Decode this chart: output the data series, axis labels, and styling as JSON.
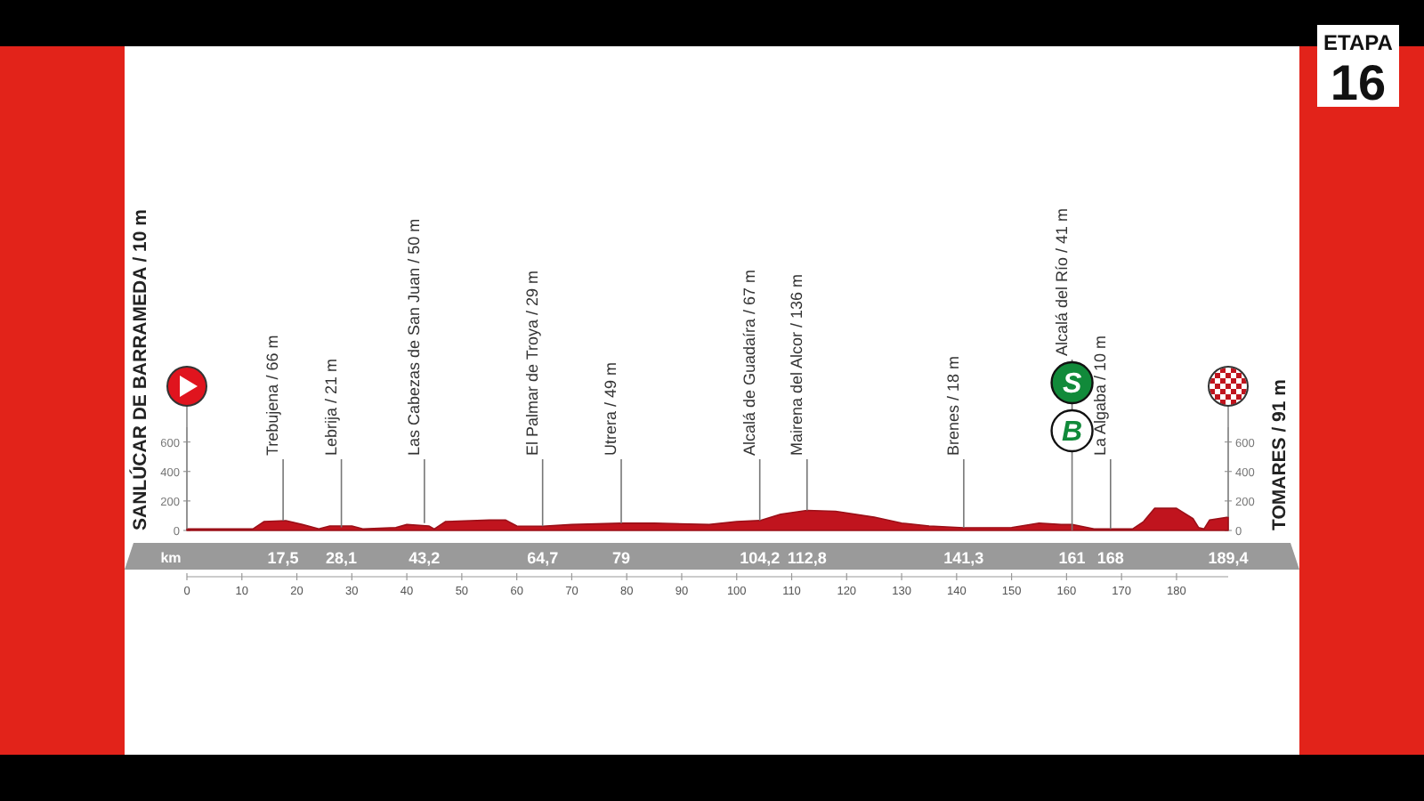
{
  "chart_data": {
    "type": "area",
    "title": "ETAPA",
    "subtitle": "16",
    "x2label": "km",
    "x": [
      0,
      12,
      14,
      18,
      21,
      24,
      26,
      30,
      32,
      38,
      40,
      44,
      45,
      47,
      55,
      58,
      60,
      64.7,
      70,
      79,
      85,
      95,
      100,
      104.2,
      108,
      112.8,
      118,
      125,
      130,
      135,
      141.3,
      150,
      155,
      159,
      161,
      165,
      168,
      172,
      174,
      176,
      180,
      183,
      184,
      185,
      186,
      189.4
    ],
    "series": [
      {
        "color": "#c0141e",
        "values": [
          10,
          10,
          60,
          66,
          40,
          10,
          30,
          30,
          10,
          20,
          40,
          30,
          10,
          60,
          70,
          70,
          30,
          29,
          40,
          49,
          50,
          40,
          60,
          67,
          110,
          136,
          130,
          90,
          50,
          30,
          18,
          20,
          50,
          40,
          41,
          10,
          10,
          10,
          60,
          150,
          150,
          80,
          20,
          10,
          70,
          91
        ]
      }
    ],
    "xlim": [
      0,
      189.4
    ],
    "xticks": [
      0,
      10,
      20,
      30,
      40,
      50,
      60,
      70,
      80,
      90,
      100,
      110,
      120,
      130,
      140,
      150,
      160,
      170,
      180
    ],
    "x2lim": [
      0,
      189.4
    ],
    "x2ticks": [
      {
        "value": 17.5,
        "label": "17,5"
      },
      {
        "value": 28.1,
        "label": "28,1"
      },
      {
        "value": 43.2,
        "label": "43,2"
      },
      {
        "value": 64.7,
        "label": "64,7"
      },
      79,
      {
        "value": 104.2,
        "label": "104,2"
      },
      {
        "value": 112.8,
        "label": "112,8"
      },
      {
        "value": 141.3,
        "label": "141,3"
      },
      161,
      168,
      {
        "value": 189.4,
        "label": "189,4"
      }
    ],
    "ylim": [
      0,
      700
    ],
    "yticks": [
      0,
      200,
      400,
      600
    ],
    "y2lim": [
      0,
      700
    ],
    "y2ticks": [
      0,
      200,
      400,
      600
    ],
    "annotations": [
      {
        "text": "SANLÚCAR DE BARRAMEDA / 10 m",
        "x": 0,
        "y": 10
      },
      {
        "text": "Trebujena / 66 m",
        "x": 17.5,
        "y": 66
      },
      {
        "text": "Lebrija / 21 m",
        "x": 28.1,
        "y": 21
      },
      {
        "text": "Las Cabezas de San Juan / 50 m",
        "x": 43.2,
        "y": 50
      },
      {
        "text": "El Palmar de Troya / 29 m",
        "x": 64.7,
        "y": 29
      },
      {
        "text": "Utrera / 49 m",
        "x": 79,
        "y": 49
      },
      {
        "text": "Alcalá de Guadaíra / 67 m",
        "x": 104.2,
        "y": 67
      },
      {
        "text": "Mairena del Alcor / 136 m",
        "x": 112.8,
        "y": 136
      },
      {
        "text": "Brenes / 18 m",
        "x": 141.3,
        "y": 18
      },
      "Alcalá del Río / 41 m",
      "S",
      "B",
      {
        "text": "La Algaba / 10 m",
        "x": 168,
        "y": 10
      },
      {
        "text": "TOMARES / 91 m",
        "x": 189.4,
        "y": 91
      }
    ]
  }
}
